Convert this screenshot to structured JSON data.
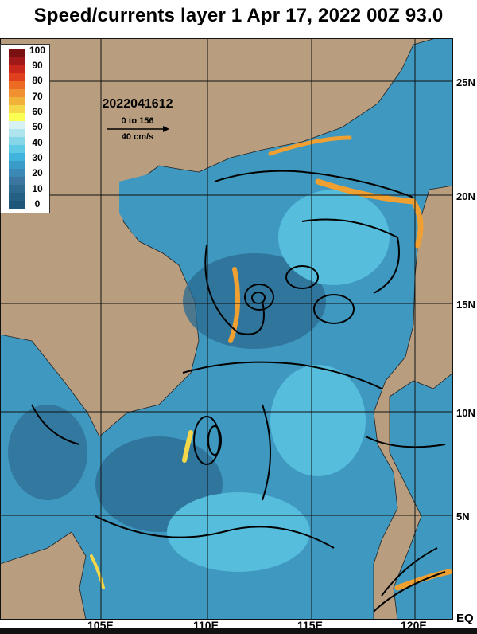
{
  "title": "Speed/currents layer 1 Apr 17, 2022 00Z 93.0",
  "annotation": {
    "date_stamp": "2022041612",
    "range": "0 to 156",
    "vector_scale": "40 cm/s"
  },
  "colorbar": {
    "labels": [
      "100",
      "90",
      "80",
      "70",
      "60",
      "50",
      "40",
      "30",
      "20",
      "10",
      "0"
    ],
    "colors": [
      "#7a1010",
      "#a01818",
      "#c8281c",
      "#e0401e",
      "#ec6a22",
      "#f09030",
      "#f0b238",
      "#f4d84a",
      "#fbff52",
      "#d8f2f4",
      "#aee4ee",
      "#86d6ea",
      "#5ecae6",
      "#40b4dc",
      "#3a9cc8",
      "#3a88b4",
      "#3a76a0",
      "#2e6a90",
      "#255f84",
      "#1e567a"
    ]
  },
  "axes": {
    "latitude_labels": [
      "25N",
      "20N",
      "15N",
      "10N",
      "5N",
      "EQ"
    ],
    "longitude_labels": [
      "105E",
      "110E",
      "115E",
      "120E"
    ]
  },
  "colors": {
    "land": "#b89e7f",
    "ocean_slow": "#2e6e94",
    "ocean_mid": "#5ecae6",
    "ocean_fast": "#f0a030",
    "vectors": "#000000"
  }
}
